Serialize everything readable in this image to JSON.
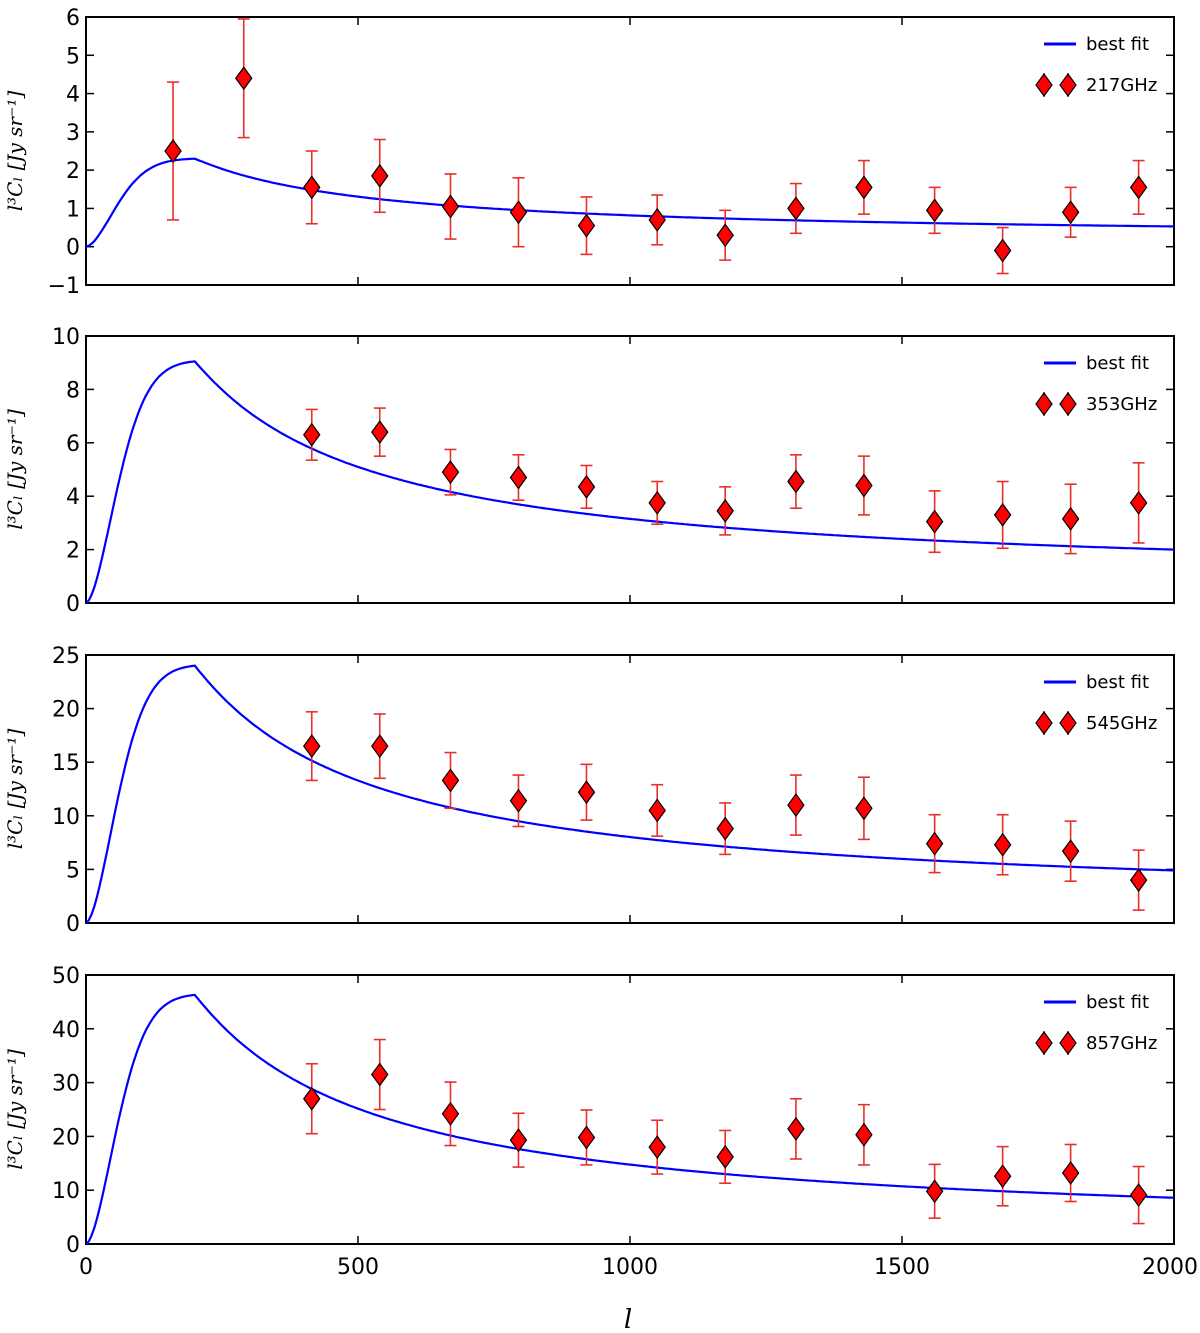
{
  "chart_data": {
    "type": "scatter",
    "shared_x": {
      "label": "l",
      "range": [
        0,
        2000
      ],
      "ticks": [
        0,
        500,
        1000,
        1500,
        2000
      ],
      "tick_labels": [
        "0",
        "500",
        "1000",
        "1500",
        "2000"
      ]
    },
    "panels": [
      {
        "id": "217",
        "ylabel": "l³Cₗ [Jy sr⁻¹]",
        "ylim": [
          -1,
          6
        ],
        "yticks": [
          -1,
          0,
          1,
          2,
          3,
          4,
          5,
          6
        ],
        "ytick_labels": [
          "−1",
          "0",
          "1",
          "2",
          "3",
          "4",
          "5",
          "6"
        ],
        "fit_peak": 2.3,
        "fit_end": 0.53,
        "legend": {
          "fit_label": "best fit",
          "data_label": "217GHz",
          "position": "top-right"
        },
        "points": [
          {
            "l": 160,
            "y": 2.5,
            "err": 1.8
          },
          {
            "l": 290,
            "y": 4.4,
            "err": 1.55
          },
          {
            "l": 415,
            "y": 1.55,
            "err": 0.95
          },
          {
            "l": 540,
            "y": 1.85,
            "err": 0.95
          },
          {
            "l": 670,
            "y": 1.05,
            "err": 0.85
          },
          {
            "l": 795,
            "y": 0.9,
            "err": 0.9
          },
          {
            "l": 920,
            "y": 0.55,
            "err": 0.75
          },
          {
            "l": 1050,
            "y": 0.7,
            "err": 0.65
          },
          {
            "l": 1175,
            "y": 0.3,
            "err": 0.65
          },
          {
            "l": 1305,
            "y": 1.0,
            "err": 0.65
          },
          {
            "l": 1430,
            "y": 1.55,
            "err": 0.7
          },
          {
            "l": 1560,
            "y": 0.95,
            "err": 0.6
          },
          {
            "l": 1685,
            "y": -0.1,
            "err": 0.6
          },
          {
            "l": 1810,
            "y": 0.9,
            "err": 0.65
          },
          {
            "l": 1935,
            "y": 1.55,
            "err": 0.7
          }
        ]
      },
      {
        "id": "353",
        "ylabel": "l³Cₗ [Jy sr⁻¹]",
        "ylim": [
          0,
          10
        ],
        "yticks": [
          0,
          2,
          4,
          6,
          8,
          10
        ],
        "ytick_labels": [
          "0",
          "2",
          "4",
          "6",
          "8",
          "10"
        ],
        "fit_peak": 9.05,
        "fit_end": 2.0,
        "legend": {
          "fit_label": "best fit",
          "data_label": "353GHz",
          "position": "top-right"
        },
        "points": [
          {
            "l": 415,
            "y": 6.3,
            "err": 0.95
          },
          {
            "l": 540,
            "y": 6.4,
            "err": 0.9
          },
          {
            "l": 670,
            "y": 4.9,
            "err": 0.85
          },
          {
            "l": 795,
            "y": 4.7,
            "err": 0.85
          },
          {
            "l": 920,
            "y": 4.35,
            "err": 0.8
          },
          {
            "l": 1050,
            "y": 3.75,
            "err": 0.8
          },
          {
            "l": 1175,
            "y": 3.45,
            "err": 0.9
          },
          {
            "l": 1305,
            "y": 4.55,
            "err": 1.0
          },
          {
            "l": 1430,
            "y": 4.4,
            "err": 1.1
          },
          {
            "l": 1560,
            "y": 3.05,
            "err": 1.15
          },
          {
            "l": 1685,
            "y": 3.3,
            "err": 1.25
          },
          {
            "l": 1810,
            "y": 3.15,
            "err": 1.3
          },
          {
            "l": 1935,
            "y": 3.75,
            "err": 1.5
          }
        ]
      },
      {
        "id": "545",
        "ylabel": "l³Cₗ [Jy sr⁻¹]",
        "ylim": [
          0,
          25
        ],
        "yticks": [
          0,
          5,
          10,
          15,
          20,
          25
        ],
        "ytick_labels": [
          "0",
          "5",
          "10",
          "15",
          "20",
          "25"
        ],
        "fit_peak": 24.0,
        "fit_end": 4.9,
        "legend": {
          "fit_label": "best fit",
          "data_label": "545GHz",
          "position": "top-right"
        },
        "points": [
          {
            "l": 415,
            "y": 16.5,
            "err": 3.2
          },
          {
            "l": 540,
            "y": 16.5,
            "err": 3.0
          },
          {
            "l": 670,
            "y": 13.3,
            "err": 2.6
          },
          {
            "l": 795,
            "y": 11.4,
            "err": 2.4
          },
          {
            "l": 920,
            "y": 12.2,
            "err": 2.6
          },
          {
            "l": 1050,
            "y": 10.5,
            "err": 2.4
          },
          {
            "l": 1175,
            "y": 8.8,
            "err": 2.4
          },
          {
            "l": 1305,
            "y": 11.0,
            "err": 2.8
          },
          {
            "l": 1430,
            "y": 10.7,
            "err": 2.9
          },
          {
            "l": 1560,
            "y": 7.4,
            "err": 2.7
          },
          {
            "l": 1685,
            "y": 7.3,
            "err": 2.8
          },
          {
            "l": 1810,
            "y": 6.7,
            "err": 2.8
          },
          {
            "l": 1935,
            "y": 4.0,
            "err": 2.8
          }
        ]
      },
      {
        "id": "857",
        "ylabel": "l³Cₗ [Jy sr⁻¹]",
        "ylim": [
          0,
          50
        ],
        "yticks": [
          0,
          10,
          20,
          30,
          40,
          50
        ],
        "ytick_labels": [
          "0",
          "10",
          "20",
          "30",
          "40",
          "50"
        ],
        "fit_peak": 46.3,
        "fit_end": 8.6,
        "legend": {
          "fit_label": "best fit",
          "data_label": "857GHz",
          "position": "top-right"
        },
        "points": [
          {
            "l": 415,
            "y": 27.0,
            "err": 6.5
          },
          {
            "l": 540,
            "y": 31.5,
            "err": 6.5
          },
          {
            "l": 670,
            "y": 24.2,
            "err": 5.9
          },
          {
            "l": 795,
            "y": 19.3,
            "err": 5.0
          },
          {
            "l": 920,
            "y": 19.8,
            "err": 5.1
          },
          {
            "l": 1050,
            "y": 18.0,
            "err": 5.0
          },
          {
            "l": 1175,
            "y": 16.2,
            "err": 4.9
          },
          {
            "l": 1305,
            "y": 21.4,
            "err": 5.6
          },
          {
            "l": 1430,
            "y": 20.3,
            "err": 5.6
          },
          {
            "l": 1560,
            "y": 9.8,
            "err": 5.0
          },
          {
            "l": 1685,
            "y": 12.6,
            "err": 5.5
          },
          {
            "l": 1810,
            "y": 13.2,
            "err": 5.3
          },
          {
            "l": 1935,
            "y": 9.1,
            "err": 5.3
          }
        ]
      }
    ],
    "colors": {
      "fit_line": "#0000ff",
      "marker_fill": "#ff0000",
      "marker_edge": "#000000",
      "errorbar": "#e8302a"
    }
  }
}
